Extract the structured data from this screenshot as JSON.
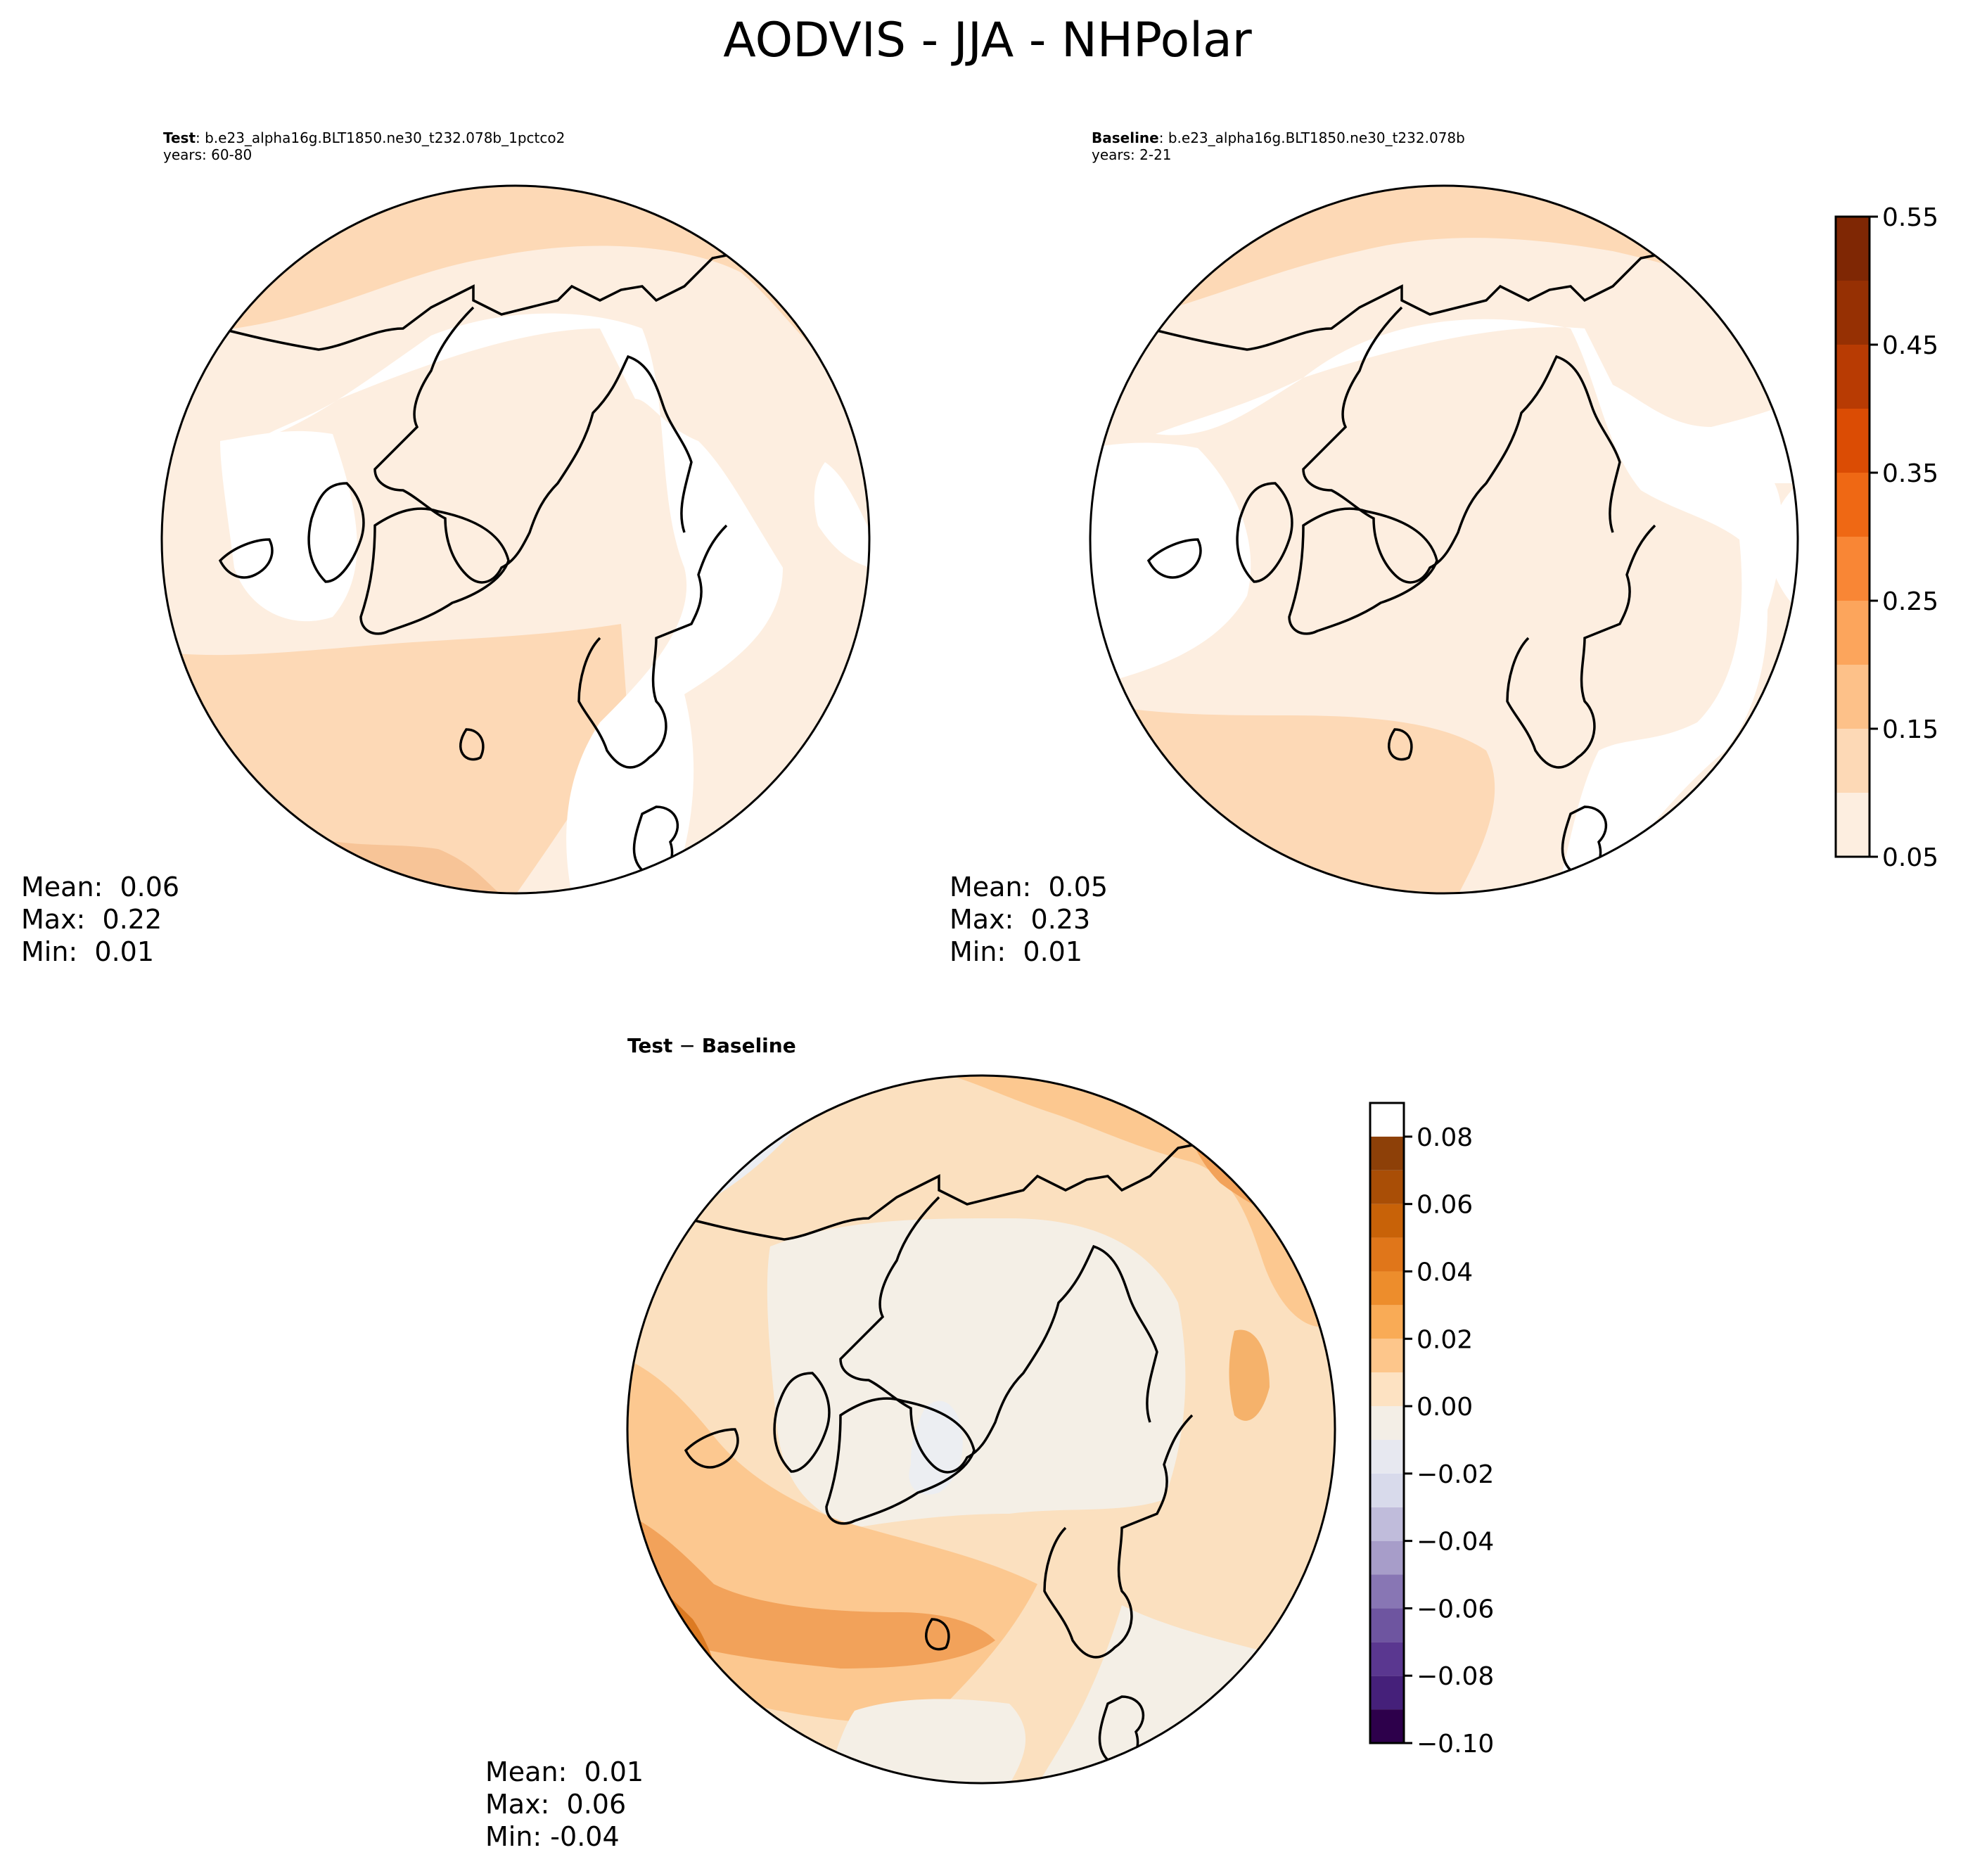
{
  "figure": {
    "title": "AODVIS - JJA - NHPolar"
  },
  "panels": {
    "test": {
      "label": "Test",
      "case": ": b.e23_alpha16g.BLT1850.ne30_t232.078b_1pctco2",
      "years": "years: 60-80",
      "mean": "Mean:  0.06",
      "max": "Max:  0.22",
      "min": "Min:  0.01"
    },
    "baseline": {
      "label": "Baseline",
      "case": ": b.e23_alpha16g.BLT1850.ne30_t232.078b",
      "years": "years: 2-21",
      "mean": "Mean:  0.05",
      "max": "Max:  0.23",
      "min": "Min:  0.01"
    },
    "diff": {
      "title_test": "Test",
      "title_sep": " − ",
      "title_base": "Baseline",
      "mean": "Mean:  0.01",
      "max": "Max:  0.06",
      "min": "Min: -0.04"
    }
  },
  "chart_data": [
    {
      "type": "heatmap",
      "projection": "north-polar-stereographic",
      "title": "Test : b.e23_alpha16g.BLT1850.ne30_t232.078b_1pctco2",
      "stats": {
        "mean": 0.06,
        "max": 0.22,
        "min": 0.01
      },
      "colorbar": {
        "levels": [
          0.05,
          0.1,
          0.15,
          0.2,
          0.25,
          0.3,
          0.35,
          0.4,
          0.45,
          0.5,
          0.55
        ],
        "tick_labels": [
          "0.05",
          "0.15",
          "0.25",
          "0.35",
          "0.45",
          "0.55"
        ],
        "colors": [
          "#fdeee0",
          "#fdd9b6",
          "#fdc189",
          "#fca55c",
          "#f98635",
          "#ef6814",
          "#db4c04",
          "#b83b03",
          "#963003",
          "#7f2704"
        ]
      }
    },
    {
      "type": "heatmap",
      "projection": "north-polar-stereographic",
      "title": "Baseline : b.e23_alpha16g.BLT1850.ne30_t232.078b",
      "stats": {
        "mean": 0.05,
        "max": 0.23,
        "min": 0.01
      },
      "colorbar": "shared with Test"
    },
    {
      "type": "heatmap",
      "projection": "north-polar-stereographic",
      "title": "Test − Baseline",
      "stats": {
        "mean": 0.01,
        "max": 0.06,
        "min": -0.04
      },
      "colorbar": {
        "levels": [
          -0.1,
          -0.09,
          -0.08,
          -0.07,
          -0.06,
          -0.05,
          -0.04,
          -0.03,
          -0.02,
          -0.01,
          0.0,
          0.01,
          0.02,
          0.03,
          0.04,
          0.05,
          0.06,
          0.07,
          0.08,
          0.09
        ],
        "tick_labels": [
          "−0.10",
          "−0.08",
          "−0.06",
          "−0.04",
          "−0.02",
          "0.00",
          "0.02",
          "0.04",
          "0.06",
          "0.08"
        ],
        "colors": [
          "#2d004b",
          "#45207a",
          "#5a3790",
          "#6e55a0",
          "#8876b4",
          "#a79dc9",
          "#c0bcdb",
          "#d8daeb",
          "#e7e8f0",
          "#f3eee6",
          "#fde2c2",
          "#fdc68b",
          "#f9ab56",
          "#ed8d2c",
          "#e0761a",
          "#c86208",
          "#a94e06",
          "#8d4008"
        ]
      }
    }
  ],
  "colors": {
    "white": "#ffffff",
    "seq_light": "#fdeee0",
    "seq_mid": "#fdd9b6",
    "seq_dark": "#f7bf8c",
    "div_neutral": "#f4efe6",
    "div_light": "#fbe0bf",
    "div_mid": "#fcc890",
    "div_dark": "#f2a25a",
    "div_darker": "#dc7a22",
    "div_purple": "#e3e2ef",
    "div_purple2": "#c8c2de"
  }
}
